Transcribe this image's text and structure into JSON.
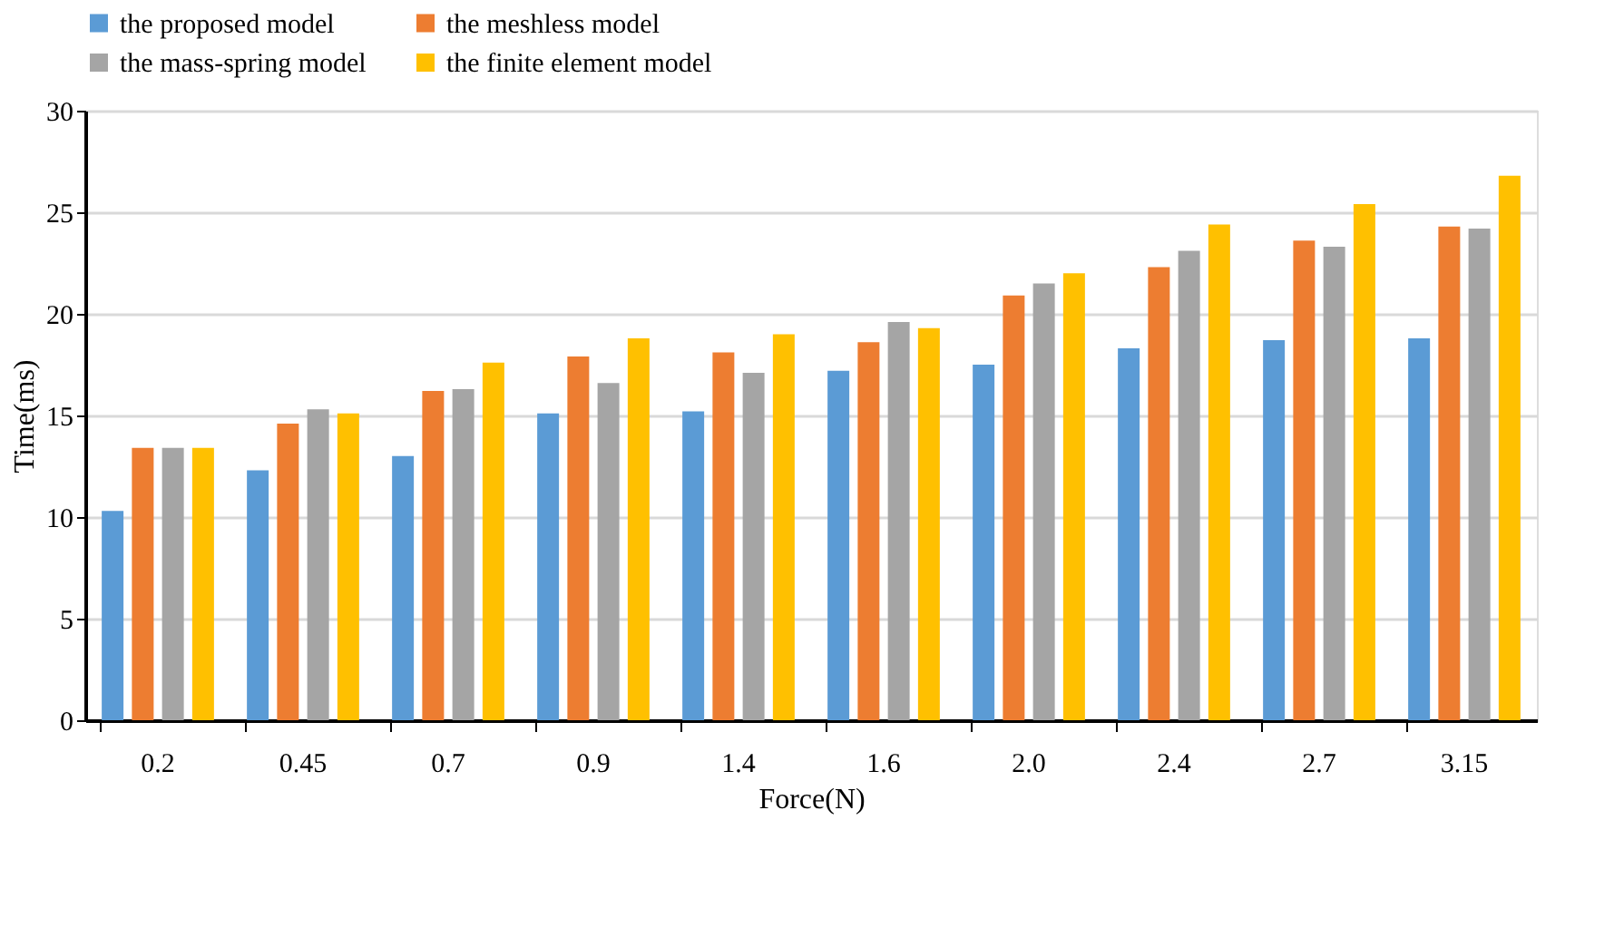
{
  "chart_data": {
    "type": "bar",
    "xlabel": "Force(N)",
    "ylabel": "Time(ms)",
    "categories": [
      "0.2",
      "0.45",
      "0.7",
      "0.9",
      "1.4",
      "1.6",
      "2.0",
      "2.4",
      "2.7",
      "3.15"
    ],
    "series": [
      {
        "name": "the proposed model",
        "color": "#5b9bd5",
        "values": [
          10.3,
          12.3,
          13.0,
          15.1,
          15.2,
          17.2,
          17.5,
          18.3,
          18.7,
          18.8
        ]
      },
      {
        "name": "the meshless model",
        "color": "#ed7d31",
        "values": [
          13.4,
          14.6,
          16.2,
          17.9,
          18.1,
          18.6,
          20.9,
          22.3,
          23.6,
          24.3
        ]
      },
      {
        "name": "the mass-spring model",
        "color": "#a5a5a5",
        "values": [
          13.4,
          15.3,
          16.3,
          16.6,
          17.1,
          19.6,
          21.5,
          23.1,
          23.3,
          24.2
        ]
      },
      {
        "name": "the finite element model",
        "color": "#ffc000",
        "values": [
          13.4,
          15.1,
          17.6,
          18.8,
          19.0,
          19.3,
          22.0,
          24.4,
          25.4,
          26.8
        ]
      }
    ],
    "ylim": [
      0,
      30
    ],
    "yticks": [
      0,
      5,
      10,
      15,
      20,
      25,
      30
    ],
    "grid": "y",
    "legend": "top"
  }
}
